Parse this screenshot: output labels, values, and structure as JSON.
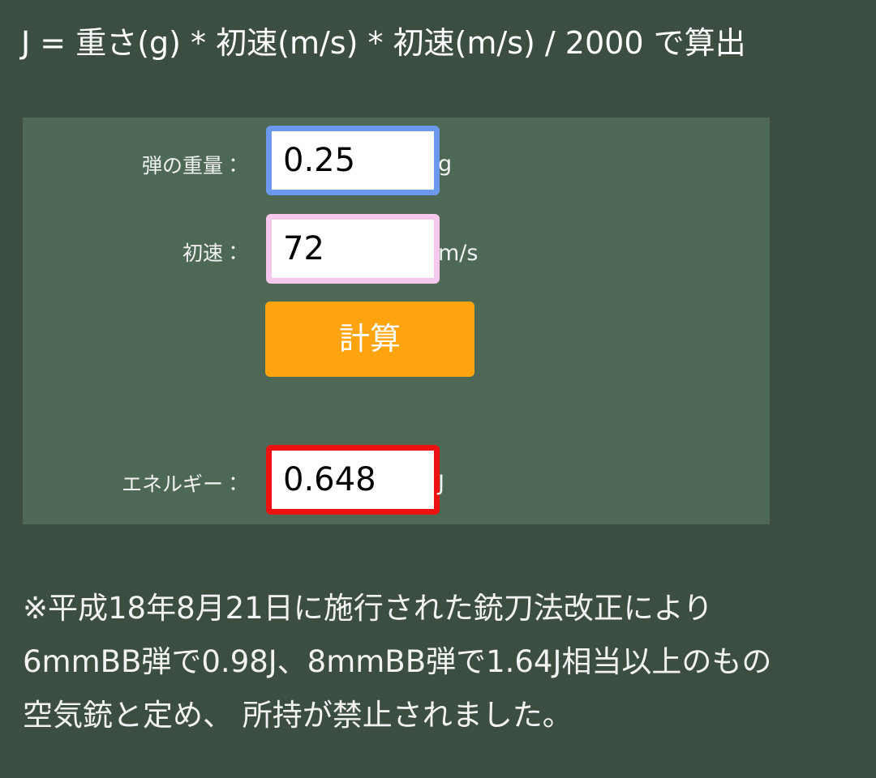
{
  "header": {
    "formula": "J = 重さ(g) * 初速(m/s) * 初速(m/s) / 2000 で算出"
  },
  "form": {
    "weight": {
      "label": "弾の重量：",
      "value": "0.25",
      "unit": "g"
    },
    "speed": {
      "label": "初速：",
      "value": "72",
      "unit": "m/s"
    },
    "button": "計算",
    "energy": {
      "label": "エネルギー：",
      "value": "0.648",
      "unit": "J"
    }
  },
  "note": {
    "lines": [
      "※平成18年8月21日に施行された銃刀法改正により",
      "6mmBB弾で0.98J、8mmBB弾で1.64J相当以上のもの",
      "空気銃と定め、 所持が禁止されました。"
    ]
  }
}
